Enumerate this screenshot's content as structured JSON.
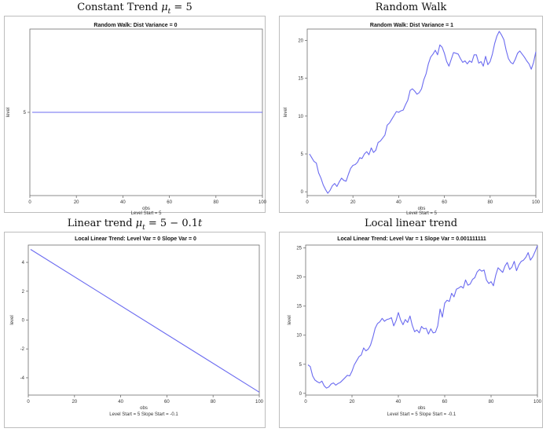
{
  "panels": {
    "p1": {
      "heading_pre": "Constant Trend ",
      "heading_mu": "μ",
      "heading_sub": "t",
      "heading_post": " = 5"
    },
    "p2": {
      "heading": "Random Walk"
    },
    "p3": {
      "heading_pre": "Linear trend ",
      "heading_mu": "μ",
      "heading_sub": "t",
      "heading_post": " = 5 − 0.1",
      "heading_t": "t"
    },
    "p4": {
      "heading": "Local linear trend"
    }
  },
  "watermark": "",
  "chart_data": [
    {
      "type": "line",
      "title": "Random Walk: Dist Variance = 0",
      "xlabel": "obs",
      "ylabel": "level",
      "footnote": "Level Start = 5",
      "xlim": [
        0,
        100
      ],
      "ylim": [
        -5,
        15
      ],
      "xticks": [
        0,
        20,
        40,
        60,
        80,
        100
      ],
      "yticks": [
        5
      ],
      "series": [
        {
          "x": [
            1,
            100
          ],
          "values": [
            5,
            5
          ]
        }
      ],
      "color": "#6b6bf0"
    },
    {
      "type": "line",
      "title": "Random Walk: Dist Variance = 1",
      "xlabel": "obs",
      "ylabel": "level",
      "footnote": "Level Start = 5",
      "xlim": [
        0,
        100
      ],
      "ylim": [
        -0.5,
        21.5
      ],
      "xticks": [
        0,
        20,
        40,
        60,
        80,
        100
      ],
      "yticks": [
        0,
        5,
        10,
        15,
        20
      ],
      "series": [
        {
          "x": [
            1,
            2,
            3,
            4,
            5,
            6,
            7,
            8,
            9,
            10,
            11,
            12,
            13,
            14,
            15,
            16,
            17,
            18,
            19,
            20,
            21,
            22,
            23,
            24,
            25,
            26,
            27,
            28,
            29,
            30,
            31,
            32,
            33,
            34,
            35,
            36,
            37,
            38,
            39,
            40,
            41,
            42,
            43,
            44,
            45,
            46,
            47,
            48,
            49,
            50,
            51,
            52,
            53,
            54,
            55,
            56,
            57,
            58,
            59,
            60,
            61,
            62,
            63,
            64,
            65,
            66,
            67,
            68,
            69,
            70,
            71,
            72,
            73,
            74,
            75,
            76,
            77,
            78,
            79,
            80,
            81,
            82,
            83,
            84,
            85,
            86,
            87,
            88,
            89,
            90,
            91,
            92,
            93,
            94,
            95,
            96,
            97,
            98,
            99,
            100
          ],
          "values": [
            5,
            4.5,
            4,
            3.8,
            2.5,
            1.8,
            0.9,
            0.3,
            -0.2,
            0.2,
            0.8,
            1.1,
            0.7,
            1.3,
            1.8,
            1.5,
            1.4,
            2.3,
            3.1,
            3.5,
            3.6,
            3.9,
            4.5,
            4.4,
            5,
            5.3,
            4.9,
            5.8,
            5.2,
            5.5,
            6.5,
            6.7,
            7.1,
            7.5,
            8.8,
            9.1,
            9.6,
            10.1,
            10.6,
            10.5,
            10.7,
            10.8,
            11.5,
            12.1,
            13.4,
            13.6,
            13.3,
            12.9,
            13.1,
            13.6,
            14.8,
            15.6,
            16.9,
            17.8,
            18.2,
            18.7,
            18.1,
            19.4,
            19.1,
            18.3,
            17.2,
            16.6,
            17.5,
            18.4,
            18.3,
            18.2,
            17.6,
            17.1,
            17.3,
            16.9,
            17.3,
            17.1,
            18.1,
            18.1,
            17,
            17.2,
            16.6,
            17.9,
            16.8,
            17.2,
            18.2,
            19.6,
            20.6,
            21.2,
            20.7,
            20.1,
            18.7,
            17.6,
            17.1,
            16.9,
            17.5,
            18.3,
            18.6,
            18.2,
            17.8,
            17.3,
            16.9,
            16.2,
            17.1,
            18.5
          ]
        }
      ],
      "color": "#6b6bf0"
    },
    {
      "type": "line",
      "title": "Local Linear Trend: Level Var = 0 Slope Var = 0",
      "xlabel": "obs",
      "ylabel": "level",
      "footnote": "Level Start = 5 Slope Start = -0.1",
      "xlim": [
        0,
        100
      ],
      "ylim": [
        -5.2,
        5.2
      ],
      "xticks": [
        0,
        20,
        40,
        60,
        80,
        100
      ],
      "yticks": [
        -4,
        -2,
        0,
        2,
        4
      ],
      "series": [
        {
          "x": [
            1,
            100
          ],
          "values": [
            4.9,
            -5
          ]
        }
      ],
      "color": "#6b6bf0"
    },
    {
      "type": "line",
      "title": "Local Linear Trend: Level Var = 1 Slope Var = 0.001111111",
      "xlabel": "obs",
      "ylabel": "level",
      "footnote": "Level Start = 5 Slope Start = -0.1",
      "xlim": [
        0,
        100
      ],
      "ylim": [
        -0.3,
        25.5
      ],
      "xticks": [
        0,
        20,
        40,
        60,
        80,
        100
      ],
      "yticks": [
        0,
        5,
        10,
        15,
        20,
        25
      ],
      "series": [
        {
          "x": [
            1,
            2,
            3,
            4,
            5,
            6,
            7,
            8,
            9,
            10,
            11,
            12,
            13,
            14,
            15,
            16,
            17,
            18,
            19,
            20,
            21,
            22,
            23,
            24,
            25,
            26,
            27,
            28,
            29,
            30,
            31,
            32,
            33,
            34,
            35,
            36,
            37,
            38,
            39,
            40,
            41,
            42,
            43,
            44,
            45,
            46,
            47,
            48,
            49,
            50,
            51,
            52,
            53,
            54,
            55,
            56,
            57,
            58,
            59,
            60,
            61,
            62,
            63,
            64,
            65,
            66,
            67,
            68,
            69,
            70,
            71,
            72,
            73,
            74,
            75,
            76,
            77,
            78,
            79,
            80,
            81,
            82,
            83,
            84,
            85,
            86,
            87,
            88,
            89,
            90,
            91,
            92,
            93,
            94,
            95,
            96,
            97,
            98,
            99,
            100
          ],
          "values": [
            4.9,
            4.6,
            3,
            2.3,
            2,
            1.8,
            2.1,
            1.3,
            0.9,
            1.1,
            1.6,
            1.8,
            1.4,
            1.7,
            1.9,
            2.3,
            2.7,
            3.1,
            3,
            3.8,
            4.9,
            5.6,
            6.3,
            6.6,
            7.8,
            7.3,
            7.6,
            8.3,
            9.6,
            11.2,
            12,
            12.3,
            12.9,
            12.4,
            12.7,
            12.8,
            13,
            11.6,
            12.5,
            13.9,
            12.6,
            11.8,
            12.7,
            12.2,
            13.3,
            11.7,
            10.6,
            10.9,
            10.4,
            11.5,
            11.1,
            11.2,
            10.2,
            11.1,
            10.4,
            10.5,
            11.6,
            14.5,
            13.1,
            15.5,
            16,
            15.8,
            17.2,
            16.6,
            17.9,
            18.1,
            18.4,
            18.1,
            19.5,
            18.6,
            18.8,
            19.6,
            19.9,
            20.9,
            21.3,
            21,
            21.2,
            19.5,
            18.9,
            19.2,
            18.5,
            20.3,
            21.6,
            21.2,
            20.8,
            21.9,
            22.5,
            21.3,
            21.7,
            22.7,
            21.1,
            22.1,
            22.7,
            22.9,
            23.4,
            24.2,
            22.9,
            23.5,
            24.4,
            25.4
          ]
        }
      ],
      "color": "#6b6bf0"
    }
  ]
}
